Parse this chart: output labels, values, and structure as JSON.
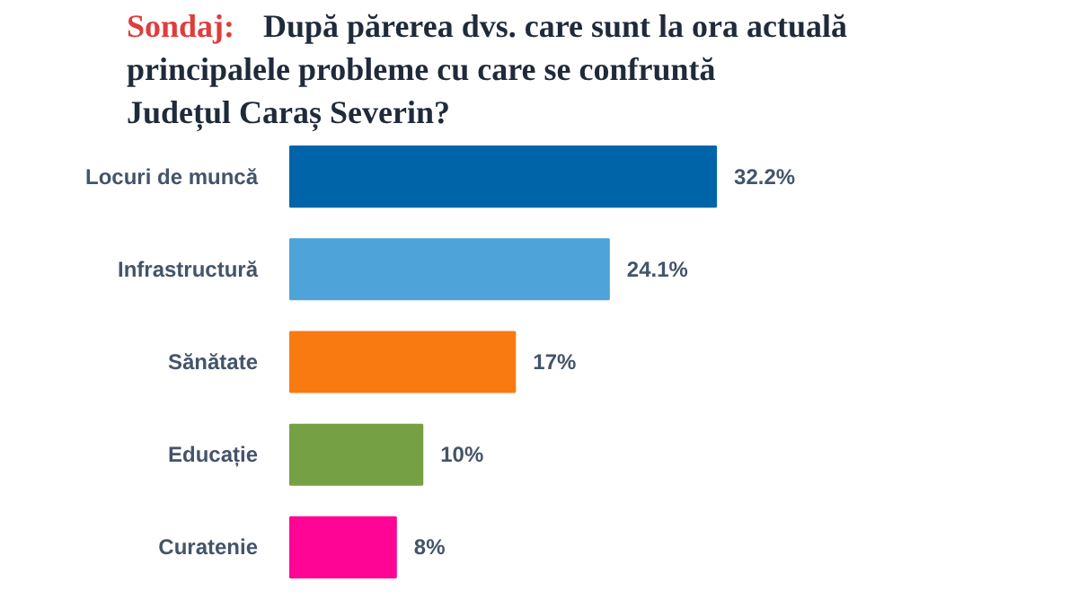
{
  "chart_data": {
    "type": "bar",
    "orientation": "horizontal",
    "title": "Sondaj:",
    "subtitle": "După părerea dvs. care sunt la ora actuală principalele probleme cu care se confruntă Județul Caraș Severin?",
    "categories": [
      "Locuri de muncă",
      "Infrastructură",
      "Sănătate",
      "Educație",
      "Curatenie"
    ],
    "values": [
      32.2,
      24.1,
      17,
      10,
      8
    ],
    "colors": [
      "#0065a8",
      "#4ea3d8",
      "#fa7a12",
      "#76a044",
      "#ff0595"
    ],
    "value_labels": [
      "32.2%",
      "24.1%",
      "17%",
      "10%",
      "8%"
    ],
    "grid": false,
    "tick_labels": "y"
  }
}
